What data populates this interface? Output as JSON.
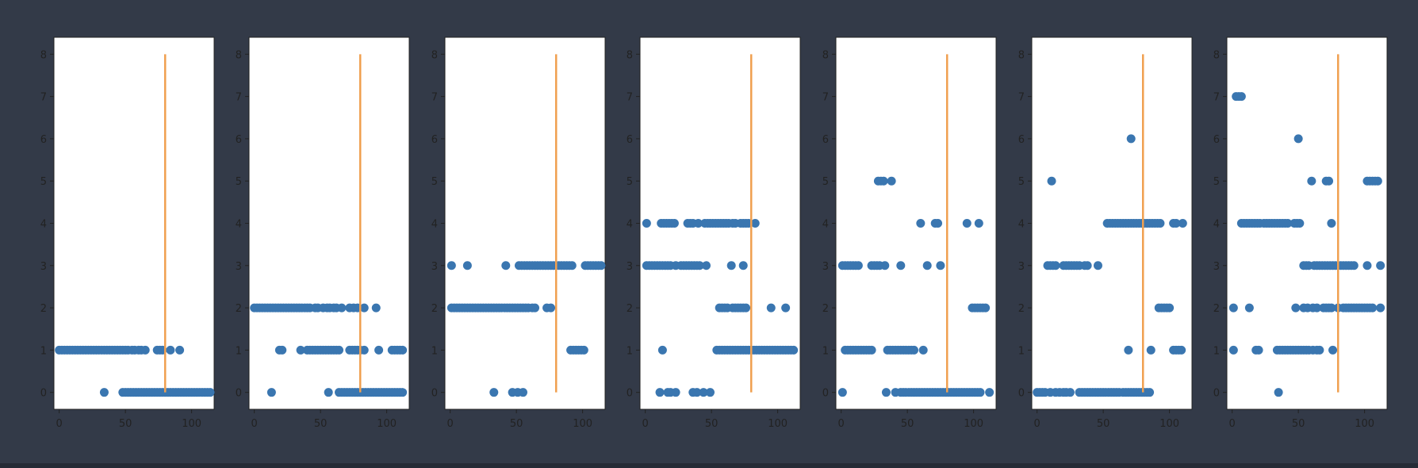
{
  "colors": {
    "background": "#333a48",
    "plot_bg": "#ffffff",
    "scatter": "#3a76b0",
    "threshold": "#f0a050",
    "axis": "#222222"
  },
  "chart_data": [
    {
      "type": "scatter",
      "xlim": [
        -4,
        117
      ],
      "ylim": [
        -0.4,
        8.4
      ],
      "xticks": [
        "0",
        "50",
        "100"
      ],
      "yticks": [
        "0",
        "1",
        "2",
        "3",
        "4",
        "5",
        "6",
        "7",
        "8"
      ],
      "threshold_x": 80,
      "threshold_y": [
        0,
        8
      ],
      "segments": [
        {
          "y": 1,
          "x": [
            0,
            2,
            4,
            6,
            8,
            10,
            12,
            14,
            16,
            18,
            20,
            22,
            24,
            26,
            28,
            30,
            32,
            34,
            36,
            38,
            40,
            42,
            44,
            46,
            48,
            50,
            52,
            55,
            57,
            60,
            62,
            65,
            74,
            76,
            78,
            84,
            91
          ]
        },
        {
          "y": 0,
          "x": [
            34,
            48,
            50,
            52,
            54,
            56,
            58,
            60,
            62,
            64,
            66,
            68,
            70,
            72,
            74,
            76,
            78,
            80,
            82,
            84,
            86,
            88,
            90,
            92,
            94,
            96,
            98,
            100,
            102,
            104,
            106,
            108,
            110,
            112,
            114
          ]
        }
      ]
    },
    {
      "type": "scatter",
      "xlim": [
        -4,
        117
      ],
      "ylim": [
        -0.4,
        8.4
      ],
      "xticks": [
        "0",
        "50",
        "100"
      ],
      "yticks": [
        "0",
        "1",
        "2",
        "3",
        "4",
        "5",
        "6",
        "7",
        "8"
      ],
      "threshold_x": 80,
      "threshold_y": [
        0,
        8
      ],
      "segments": [
        {
          "y": 2,
          "x": [
            0,
            2,
            4,
            6,
            8,
            10,
            12,
            14,
            16,
            18,
            20,
            22,
            24,
            26,
            28,
            30,
            32,
            34,
            36,
            38,
            40,
            42,
            46,
            48,
            52,
            55,
            57,
            60,
            62,
            66,
            72,
            75,
            78,
            83,
            92
          ]
        },
        {
          "y": 1,
          "x": [
            19,
            21,
            35,
            40,
            42,
            44,
            46,
            48,
            50,
            52,
            54,
            56,
            58,
            60,
            62,
            64,
            72,
            74,
            76,
            78,
            80,
            83,
            94,
            104,
            106,
            108,
            110,
            112
          ]
        },
        {
          "y": 0,
          "x": [
            13,
            56,
            64,
            66,
            68,
            70,
            72,
            74,
            76,
            78,
            80,
            82,
            84,
            86,
            88,
            90,
            92,
            94,
            96,
            98,
            100,
            102,
            104,
            106,
            108,
            110,
            112
          ]
        }
      ]
    },
    {
      "type": "scatter",
      "xlim": [
        -4,
        117
      ],
      "ylim": [
        -0.4,
        8.4
      ],
      "xticks": [
        "0",
        "50",
        "100"
      ],
      "yticks": [
        "0",
        "1",
        "2",
        "3",
        "4",
        "5",
        "6",
        "7",
        "8"
      ],
      "threshold_x": 80,
      "threshold_y": [
        0,
        8
      ],
      "segments": [
        {
          "y": 3,
          "x": [
            1,
            13,
            42,
            52,
            54,
            56,
            58,
            60,
            62,
            64,
            66,
            68,
            70,
            72,
            74,
            76,
            78,
            80,
            82,
            84,
            86,
            88,
            90,
            92,
            102,
            104,
            106,
            108,
            110,
            112,
            114
          ]
        },
        {
          "y": 2,
          "x": [
            1,
            3,
            5,
            7,
            9,
            11,
            13,
            15,
            17,
            19,
            21,
            23,
            25,
            27,
            29,
            31,
            33,
            35,
            37,
            39,
            41,
            43,
            45,
            47,
            49,
            51,
            53,
            55,
            57,
            59,
            62,
            64,
            73,
            76
          ]
        },
        {
          "y": 1,
          "x": [
            91,
            93,
            95,
            97,
            99,
            101
          ]
        },
        {
          "y": 0,
          "x": [
            33,
            47,
            51,
            55
          ]
        }
      ]
    },
    {
      "type": "scatter",
      "xlim": [
        -4,
        117
      ],
      "ylim": [
        -0.4,
        8.4
      ],
      "xticks": [
        "0",
        "50",
        "100"
      ],
      "yticks": [
        "0",
        "1",
        "2",
        "3",
        "4",
        "5",
        "6",
        "7",
        "8"
      ],
      "threshold_x": 80,
      "threshold_y": [
        0,
        8
      ],
      "segments": [
        {
          "y": 4,
          "x": [
            1,
            12,
            14,
            16,
            18,
            20,
            22,
            32,
            34,
            36,
            40,
            45,
            47,
            49,
            51,
            53,
            55,
            57,
            59,
            61,
            63,
            66,
            68,
            72,
            74,
            76,
            78,
            83
          ]
        },
        {
          "y": 3,
          "x": [
            1,
            3,
            5,
            7,
            9,
            11,
            13,
            15,
            17,
            19,
            23,
            27,
            29,
            31,
            33,
            35,
            37,
            39,
            41,
            46,
            65,
            74
          ]
        },
        {
          "y": 2,
          "x": [
            56,
            58,
            60,
            62,
            66,
            68,
            70,
            72,
            74,
            76,
            95,
            106
          ]
        },
        {
          "y": 1,
          "x": [
            13,
            54,
            56,
            58,
            60,
            62,
            64,
            66,
            68,
            70,
            72,
            74,
            76,
            78,
            80,
            82,
            84,
            86,
            88,
            90,
            92,
            94,
            96,
            98,
            100,
            102,
            104,
            106,
            108,
            110,
            112
          ]
        },
        {
          "y": 0,
          "x": [
            11,
            17,
            19,
            23,
            36,
            39,
            44,
            49
          ]
        }
      ]
    },
    {
      "type": "scatter",
      "xlim": [
        -4,
        117
      ],
      "ylim": [
        -0.4,
        8.4
      ],
      "xticks": [
        "0",
        "50",
        "100"
      ],
      "yticks": [
        "0",
        "1",
        "2",
        "3",
        "4",
        "5",
        "6",
        "7",
        "8"
      ],
      "threshold_x": 80,
      "threshold_y": [
        0,
        8
      ],
      "segments": [
        {
          "y": 5,
          "x": [
            28,
            30,
            32,
            38
          ]
        },
        {
          "y": 4,
          "x": [
            60,
            71,
            73,
            95,
            104
          ]
        },
        {
          "y": 3,
          "x": [
            1,
            3,
            5,
            7,
            9,
            11,
            13,
            23,
            25,
            27,
            29,
            33,
            45,
            65,
            75
          ]
        },
        {
          "y": 2,
          "x": [
            99,
            101,
            103,
            105,
            107,
            109
          ]
        },
        {
          "y": 1,
          "x": [
            3,
            5,
            7,
            9,
            11,
            13,
            15,
            17,
            19,
            21,
            23,
            35,
            37,
            39,
            41,
            43,
            45,
            47,
            49,
            51,
            53,
            55,
            62
          ]
        },
        {
          "y": 0,
          "x": [
            1,
            34,
            41,
            45,
            47,
            49,
            51,
            53,
            55,
            57,
            59,
            61,
            63,
            65,
            67,
            69,
            71,
            73,
            75,
            77,
            79,
            81,
            83,
            85,
            87,
            89,
            91,
            93,
            95,
            97,
            99,
            101,
            103,
            105,
            112
          ]
        }
      ]
    },
    {
      "type": "scatter",
      "xlim": [
        -4,
        117
      ],
      "ylim": [
        -0.4,
        8.4
      ],
      "xticks": [
        "0",
        "50",
        "100"
      ],
      "yticks": [
        "0",
        "1",
        "2",
        "3",
        "4",
        "5",
        "6",
        "7",
        "8"
      ],
      "threshold_x": 80,
      "threshold_y": [
        0,
        8
      ],
      "segments": [
        {
          "y": 6,
          "x": [
            71
          ]
        },
        {
          "y": 5,
          "x": [
            11
          ]
        },
        {
          "y": 4,
          "x": [
            53,
            55,
            57,
            59,
            61,
            63,
            65,
            67,
            69,
            71,
            73,
            75,
            77,
            79,
            81,
            83,
            85,
            87,
            89,
            91,
            93,
            103,
            105,
            110
          ]
        },
        {
          "y": 3,
          "x": [
            8,
            10,
            12,
            14,
            20,
            22,
            24,
            26,
            28,
            30,
            32,
            36,
            38,
            46
          ]
        },
        {
          "y": 2,
          "x": [
            92,
            94,
            96,
            98,
            100
          ]
        },
        {
          "y": 1,
          "x": [
            69,
            86,
            103,
            105,
            107,
            109
          ]
        },
        {
          "y": 0,
          "x": [
            0,
            2,
            4,
            6,
            10,
            14,
            17,
            20,
            22,
            25,
            32,
            34,
            36,
            38,
            40,
            42,
            44,
            46,
            48,
            50,
            52,
            54,
            56,
            58,
            60,
            62,
            65,
            67,
            69,
            71,
            73,
            75,
            77,
            79,
            81,
            83,
            85
          ]
        }
      ]
    },
    {
      "type": "scatter",
      "xlim": [
        -4,
        117
      ],
      "ylim": [
        -0.4,
        8.4
      ],
      "xticks": [
        "0",
        "50",
        "100"
      ],
      "yticks": [
        "0",
        "1",
        "2",
        "3",
        "4",
        "5",
        "6",
        "7",
        "8"
      ],
      "threshold_x": 80,
      "threshold_y": [
        0,
        8
      ],
      "segments": [
        {
          "y": 7,
          "x": [
            3,
            5,
            7
          ]
        },
        {
          "y": 6,
          "x": [
            50
          ]
        },
        {
          "y": 5,
          "x": [
            60,
            71,
            73,
            102,
            104,
            106,
            108,
            110
          ]
        },
        {
          "y": 4,
          "x": [
            7,
            9,
            11,
            13,
            15,
            17,
            19,
            21,
            24,
            26,
            28,
            30,
            32,
            34,
            36,
            38,
            40,
            42,
            47,
            49,
            51,
            75
          ]
        },
        {
          "y": 3,
          "x": [
            54,
            56,
            58,
            62,
            64,
            66,
            68,
            70,
            72,
            74,
            76,
            78,
            80,
            82,
            84,
            86,
            88,
            90,
            92,
            102,
            112
          ]
        },
        {
          "y": 2,
          "x": [
            1,
            13,
            48,
            54,
            57,
            61,
            64,
            69,
            71,
            73,
            75,
            80,
            84,
            86,
            88,
            90,
            92,
            94,
            96,
            98,
            100,
            102,
            104,
            106,
            112
          ]
        },
        {
          "y": 1,
          "x": [
            1,
            18,
            20,
            34,
            36,
            38,
            40,
            42,
            44,
            46,
            48,
            50,
            52,
            54,
            56,
            58,
            61,
            64,
            66,
            76
          ]
        },
        {
          "y": 0,
          "x": [
            35
          ]
        }
      ]
    }
  ]
}
